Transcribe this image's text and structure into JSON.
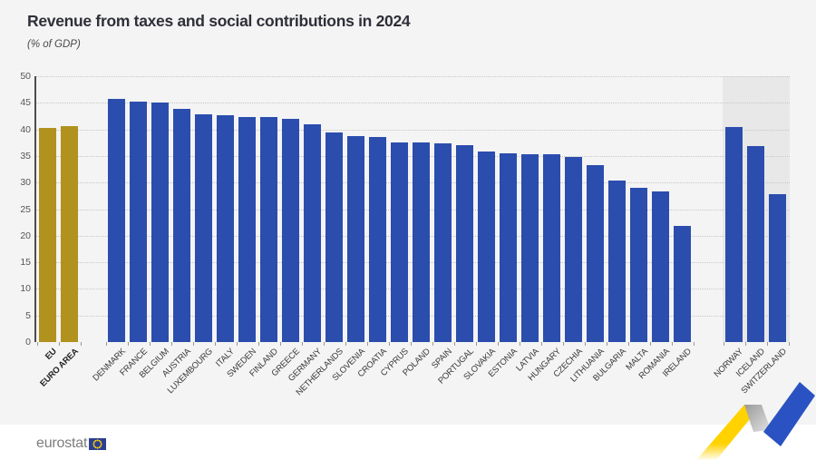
{
  "page": {
    "title": "Revenue from taxes and social contributions in 2024",
    "subtitle": "(% of GDP)"
  },
  "chart_data": {
    "type": "bar",
    "title": "Revenue from taxes and social contributions in 2024",
    "subtitle": "(% of GDP)",
    "ylabel": "% of GDP",
    "xlabel": "",
    "ylim": [
      0,
      50
    ],
    "ytick_step": 5,
    "grid": true,
    "legend": "none",
    "colors": {
      "aggregate_bar": "#b1921f",
      "country_bar": "#2b4dad",
      "efta_panel_background": "#e8e8e8",
      "plot_background": "#f4f4f4"
    },
    "groups": [
      {
        "name": "aggregates",
        "color": "#b1921f",
        "panel": false,
        "bars": [
          {
            "label": "EU",
            "value": 40.2
          },
          {
            "label": "EURO AREA",
            "value": 40.7
          }
        ]
      },
      {
        "name": "eu-countries",
        "color": "#2b4dad",
        "panel": false,
        "bars": [
          {
            "label": "DENMARK",
            "value": 45.8
          },
          {
            "label": "FRANCE",
            "value": 45.3
          },
          {
            "label": "BELGIUM",
            "value": 45.1
          },
          {
            "label": "AUSTRIA",
            "value": 43.9
          },
          {
            "label": "LUXEMBOURG",
            "value": 42.8
          },
          {
            "label": "ITALY",
            "value": 42.6
          },
          {
            "label": "SWEDEN",
            "value": 42.4
          },
          {
            "label": "FINLAND",
            "value": 42.3
          },
          {
            "label": "GREECE",
            "value": 41.9
          },
          {
            "label": "GERMANY",
            "value": 41.0
          },
          {
            "label": "NETHERLANDS",
            "value": 39.4
          },
          {
            "label": "SLOVENIA",
            "value": 38.8
          },
          {
            "label": "CROATIA",
            "value": 38.6
          },
          {
            "label": "CYPRUS",
            "value": 37.6
          },
          {
            "label": "POLAND",
            "value": 37.5
          },
          {
            "label": "SPAIN",
            "value": 37.3
          },
          {
            "label": "PORTUGAL",
            "value": 37.1
          },
          {
            "label": "SLOVAKIA",
            "value": 35.8
          },
          {
            "label": "ESTONIA",
            "value": 35.5
          },
          {
            "label": "LATVIA",
            "value": 35.4
          },
          {
            "label": "HUNGARY",
            "value": 35.3
          },
          {
            "label": "CZECHIA",
            "value": 34.9
          },
          {
            "label": "LITHUANIA",
            "value": 33.2
          },
          {
            "label": "BULGARIA",
            "value": 30.3
          },
          {
            "label": "MALTA",
            "value": 29.0
          },
          {
            "label": "ROMANIA",
            "value": 28.4
          },
          {
            "label": "IRELAND",
            "value": 21.9
          }
        ]
      },
      {
        "name": "efta-countries",
        "color": "#2b4dad",
        "panel": true,
        "bars": [
          {
            "label": "NORWAY",
            "value": 40.4
          },
          {
            "label": "ICELAND",
            "value": 36.8
          },
          {
            "label": "SWITZERLAND",
            "value": 27.8
          }
        ]
      }
    ]
  },
  "footer": {
    "logo_text": "eurostat"
  },
  "decorations": {
    "eu_flag_icon": "eu-flag-icon",
    "ribbon_icon": "eurostat-ribbon-decoration",
    "ribbon_yellow": "#ffd200",
    "ribbon_blue": "#2a52c2",
    "flag_blue": "#2b3f92",
    "flag_star_yellow": "#ffd200"
  }
}
